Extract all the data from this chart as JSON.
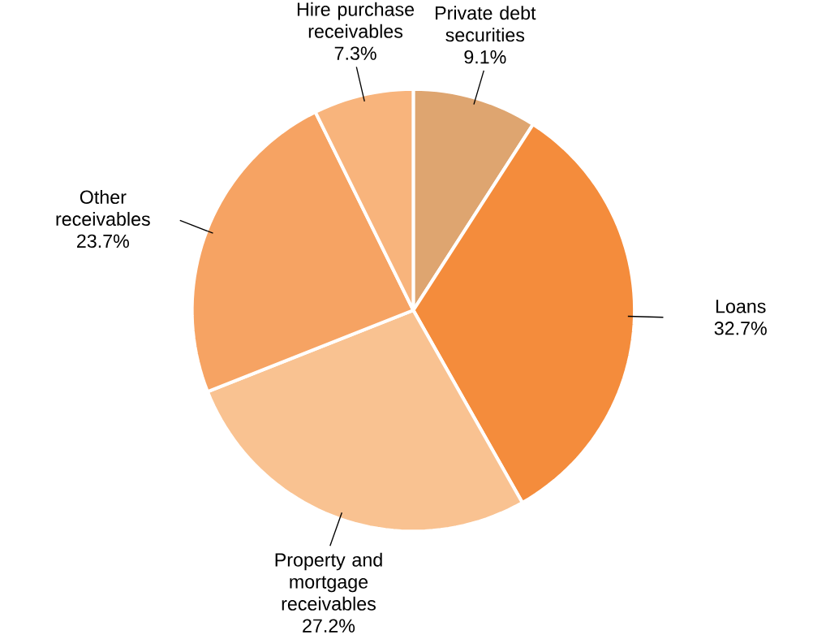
{
  "chart_data": {
    "type": "pie",
    "categories": [
      "Private debt securities",
      "Loans",
      "Property and mortgage receivables",
      "Other receivables",
      "Hire purchase receivables"
    ],
    "values": [
      9.1,
      32.7,
      27.2,
      23.7,
      7.3
    ],
    "value_labels": [
      "9.1%",
      "32.7%",
      "27.2%",
      "23.7%",
      "7.3%"
    ],
    "colors": [
      "#dea570",
      "#f48c3c",
      "#f9c291",
      "#f6a363",
      "#f8b47c"
    ]
  }
}
